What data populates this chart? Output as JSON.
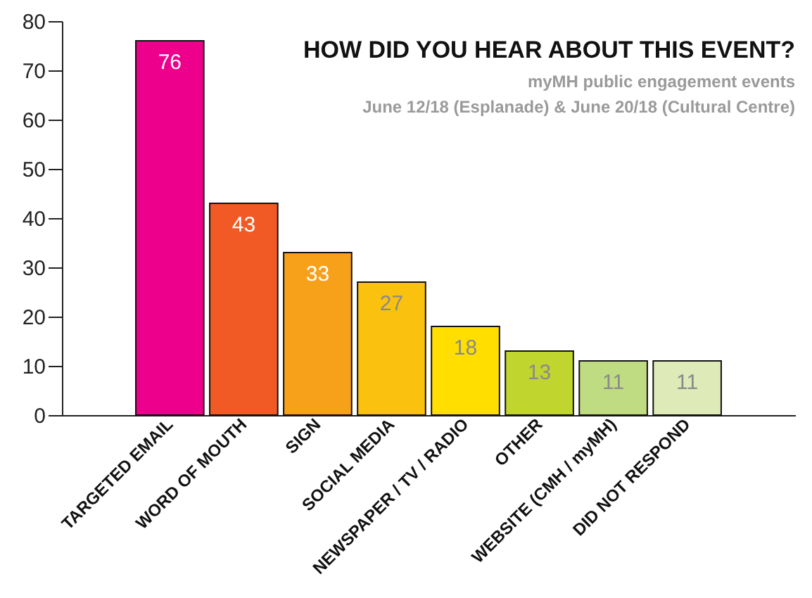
{
  "chart_data": {
    "type": "bar",
    "title": "HOW DID YOU HEAR ABOUT THIS EVENT?",
    "subtitle": "myMH public engagement events",
    "annotations": [
      "June 12/18 (Esplanade) & June 20/18 (Cultural Centre)"
    ],
    "categories": [
      "TARGETED  EMAIL",
      "WORD OF MOUTH",
      "SIGN",
      "SOCIAL MEDIA",
      "NEWSPAPER / TV / RADIO",
      "OTHER",
      "WEBSITE (CMH / myMH)",
      "DID NOT RESPOND"
    ],
    "values": [
      76,
      43,
      33,
      27,
      18,
      13,
      11,
      11
    ],
    "colors": [
      "#ec008c",
      "#f15a24",
      "#f7a11a",
      "#fbc10f",
      "#ffde00",
      "#c1d52f",
      "#c0dc82",
      "#deebb8"
    ],
    "ylim": [
      0,
      80
    ],
    "yticks": [
      0,
      10,
      20,
      30,
      40,
      50,
      60,
      70,
      80
    ],
    "grid": false,
    "data_labels": true
  }
}
